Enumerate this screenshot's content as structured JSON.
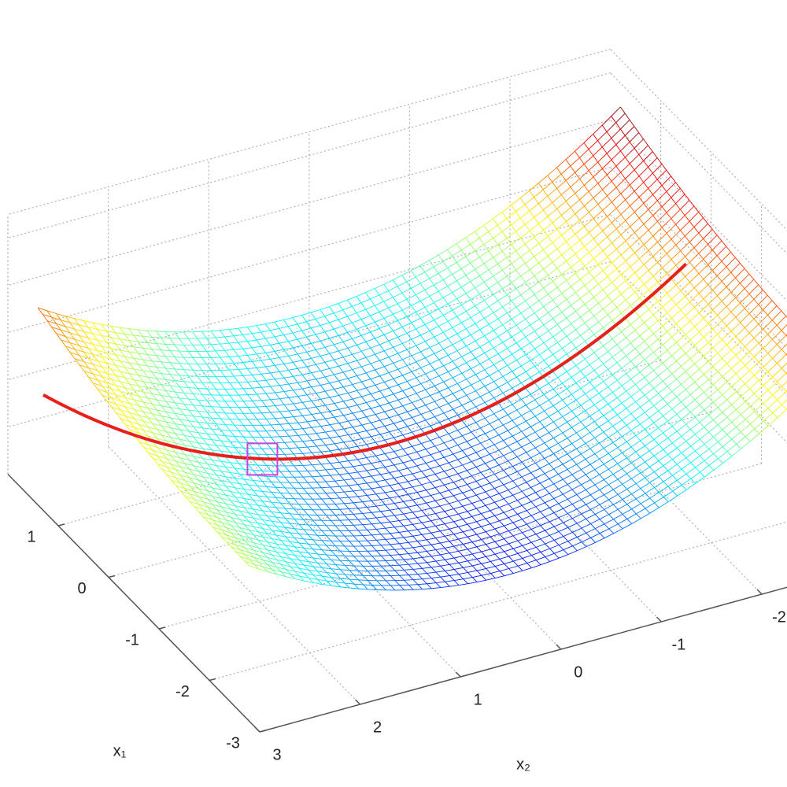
{
  "chart_data": {
    "type": "surface",
    "xlabel": "x₁",
    "ylabel": "x₂",
    "xlim": [
      -3,
      2
    ],
    "xticks": [
      -3,
      -2,
      -1,
      0,
      1
    ],
    "ylim": [
      -3,
      3
    ],
    "yticks": [
      -2,
      -1,
      0,
      1,
      2,
      3
    ],
    "grid": true,
    "colormap": "jet",
    "curve_color": "#e8201c",
    "marker_color": "#d040e0"
  }
}
